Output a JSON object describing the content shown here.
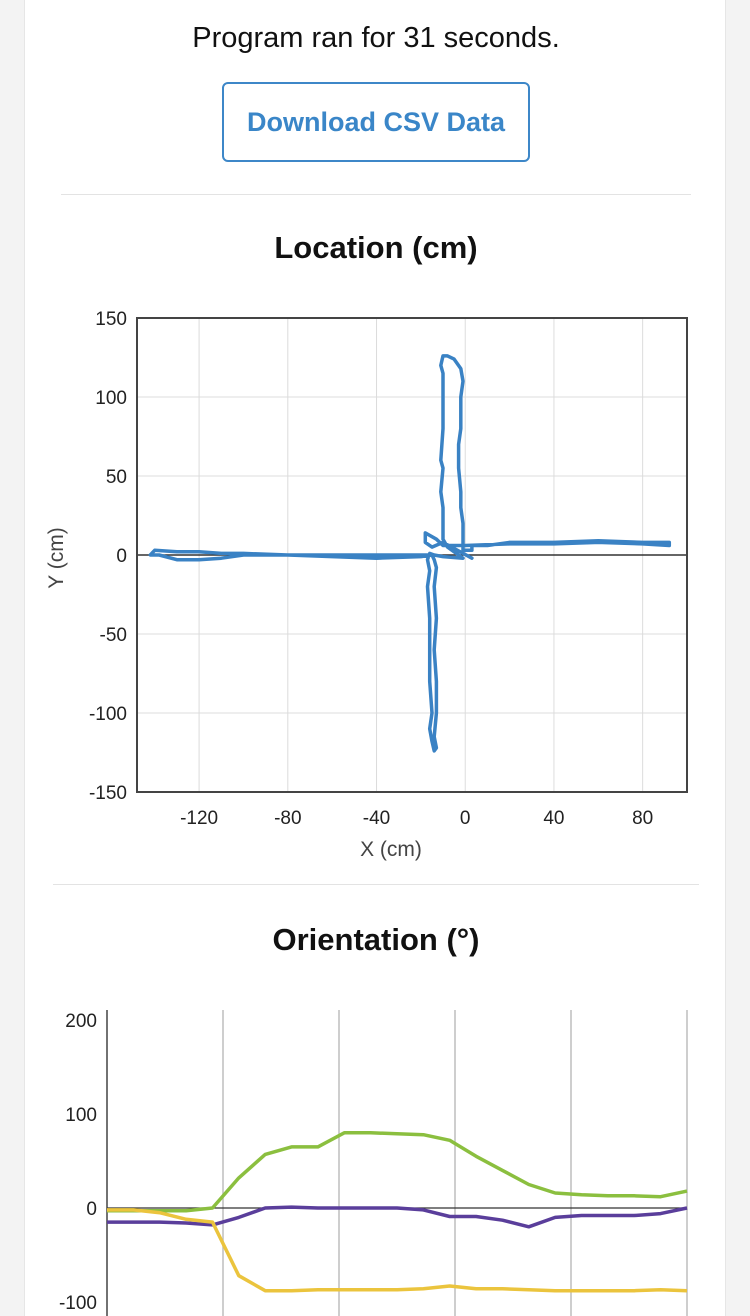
{
  "header": {
    "runtime_text": "Program ran for 31 seconds.",
    "download_label": "Download CSV Data"
  },
  "chart_data": [
    {
      "type": "line",
      "title": "Location (cm)",
      "xlabel": "X (cm)",
      "ylabel": "Y (cm)",
      "xlim": [
        -148,
        100
      ],
      "ylim": [
        -150,
        150
      ],
      "xticks": [
        -120,
        -80,
        -40,
        0,
        40,
        80
      ],
      "yticks": [
        150,
        100,
        50,
        0,
        -50,
        -100,
        -150
      ],
      "grid": true,
      "colors": [
        "#3a82c4"
      ],
      "series": [
        {
          "points": [
            [
              3,
              -2
            ],
            [
              -10,
              8
            ],
            [
              -15,
              5
            ],
            [
              -18,
              8
            ],
            [
              -18,
              12
            ],
            [
              -18,
              14
            ],
            [
              -13,
              10
            ],
            [
              -10,
              6
            ],
            [
              0,
              6
            ],
            [
              20,
              7
            ],
            [
              40,
              7
            ],
            [
              60,
              8
            ],
            [
              80,
              7
            ],
            [
              92,
              6
            ],
            [
              92,
              8
            ],
            [
              80,
              8
            ],
            [
              60,
              9
            ],
            [
              40,
              8
            ],
            [
              20,
              8
            ],
            [
              10,
              6
            ],
            [
              3,
              6
            ],
            [
              3,
              3
            ],
            [
              -1,
              3
            ],
            [
              -1,
              10
            ],
            [
              -1,
              20
            ],
            [
              -2,
              30
            ],
            [
              -2,
              40
            ],
            [
              -3,
              55
            ],
            [
              -3,
              70
            ],
            [
              -2,
              80
            ],
            [
              -2,
              100
            ],
            [
              -1,
              110
            ],
            [
              -2,
              118
            ],
            [
              -5,
              124
            ],
            [
              -8,
              126
            ],
            [
              -10,
              126
            ],
            [
              -11,
              120
            ],
            [
              -10,
              115
            ],
            [
              -10,
              100
            ],
            [
              -10,
              80
            ],
            [
              -11,
              60
            ],
            [
              -10,
              55
            ],
            [
              -11,
              40
            ],
            [
              -10,
              30
            ],
            [
              -10,
              20
            ],
            [
              -10,
              10
            ],
            [
              -8,
              5
            ],
            [
              -5,
              2
            ],
            [
              -3,
              0
            ],
            [
              -1,
              -2
            ],
            [
              -10,
              -1
            ],
            [
              -14,
              0
            ],
            [
              -16,
              1
            ],
            [
              -17,
              -3
            ],
            [
              -16,
              -10
            ],
            [
              -17,
              -20
            ],
            [
              -16,
              -40
            ],
            [
              -16,
              -60
            ],
            [
              -16,
              -80
            ],
            [
              -15,
              -100
            ],
            [
              -16,
              -110
            ],
            [
              -15,
              -118
            ],
            [
              -14,
              -124
            ],
            [
              -13,
              -122
            ],
            [
              -14,
              -115
            ],
            [
              -13,
              -100
            ],
            [
              -13,
              -80
            ],
            [
              -14,
              -60
            ],
            [
              -13,
              -40
            ],
            [
              -14,
              -20
            ],
            [
              -13,
              -8
            ],
            [
              -14,
              -3
            ],
            [
              -15,
              0
            ],
            [
              -20,
              -1
            ],
            [
              -40,
              -2
            ],
            [
              -60,
              -1
            ],
            [
              -80,
              0
            ],
            [
              -100,
              1
            ],
            [
              -110,
              1
            ],
            [
              -120,
              2
            ],
            [
              -130,
              2
            ],
            [
              -140,
              3
            ],
            [
              -142,
              0
            ],
            [
              -138,
              0
            ],
            [
              -130,
              -3
            ],
            [
              -120,
              -3
            ],
            [
              -110,
              -2
            ],
            [
              -100,
              0
            ],
            [
              -80,
              0
            ],
            [
              -60,
              0
            ],
            [
              -40,
              0
            ],
            [
              -20,
              0
            ],
            [
              -15,
              0
            ]
          ]
        }
      ]
    },
    {
      "type": "line",
      "title": "Orientation (°)",
      "ylim": [
        -100,
        200
      ],
      "yticks": [
        200,
        100,
        0,
        -100
      ],
      "grid": true,
      "series": [
        {
          "color": "#8bbf3f",
          "points": [
            [
              0,
              -3
            ],
            [
              1,
              -3
            ],
            [
              2,
              -3
            ],
            [
              3,
              -3
            ],
            [
              4,
              0
            ],
            [
              5,
              32
            ],
            [
              6,
              57
            ],
            [
              7,
              65
            ],
            [
              8,
              65
            ],
            [
              9,
              80
            ],
            [
              10,
              80
            ],
            [
              11,
              79
            ],
            [
              12,
              78
            ],
            [
              13,
              72
            ],
            [
              14,
              55
            ],
            [
              15,
              40
            ],
            [
              16,
              25
            ],
            [
              17,
              16
            ],
            [
              18,
              14
            ],
            [
              19,
              13
            ],
            [
              20,
              13
            ],
            [
              21,
              12
            ],
            [
              22,
              18
            ]
          ]
        },
        {
          "color": "#5a3e9b",
          "points": [
            [
              0,
              -15
            ],
            [
              1,
              -15
            ],
            [
              2,
              -15
            ],
            [
              3,
              -16
            ],
            [
              4,
              -18
            ],
            [
              5,
              -10
            ],
            [
              6,
              0
            ],
            [
              7,
              1
            ],
            [
              8,
              0
            ],
            [
              9,
              0
            ],
            [
              10,
              0
            ],
            [
              11,
              0
            ],
            [
              12,
              -2
            ],
            [
              13,
              -9
            ],
            [
              14,
              -9
            ],
            [
              15,
              -13
            ],
            [
              16,
              -20
            ],
            [
              17,
              -10
            ],
            [
              18,
              -8
            ],
            [
              19,
              -8
            ],
            [
              20,
              -8
            ],
            [
              21,
              -6
            ],
            [
              22,
              0
            ]
          ]
        },
        {
          "color": "#ebc43d",
          "points": [
            [
              0,
              -2
            ],
            [
              1,
              -2
            ],
            [
              2,
              -5
            ],
            [
              3,
              -12
            ],
            [
              4,
              -15
            ],
            [
              5,
              -72
            ],
            [
              6,
              -88
            ],
            [
              7,
              -88
            ],
            [
              8,
              -87
            ],
            [
              9,
              -87
            ],
            [
              10,
              -87
            ],
            [
              11,
              -87
            ],
            [
              12,
              -86
            ],
            [
              13,
              -83
            ],
            [
              14,
              -86
            ],
            [
              15,
              -86
            ],
            [
              16,
              -87
            ],
            [
              17,
              -88
            ],
            [
              18,
              -88
            ],
            [
              19,
              -88
            ],
            [
              20,
              -88
            ],
            [
              21,
              -87
            ],
            [
              22,
              -88
            ]
          ]
        }
      ]
    }
  ]
}
